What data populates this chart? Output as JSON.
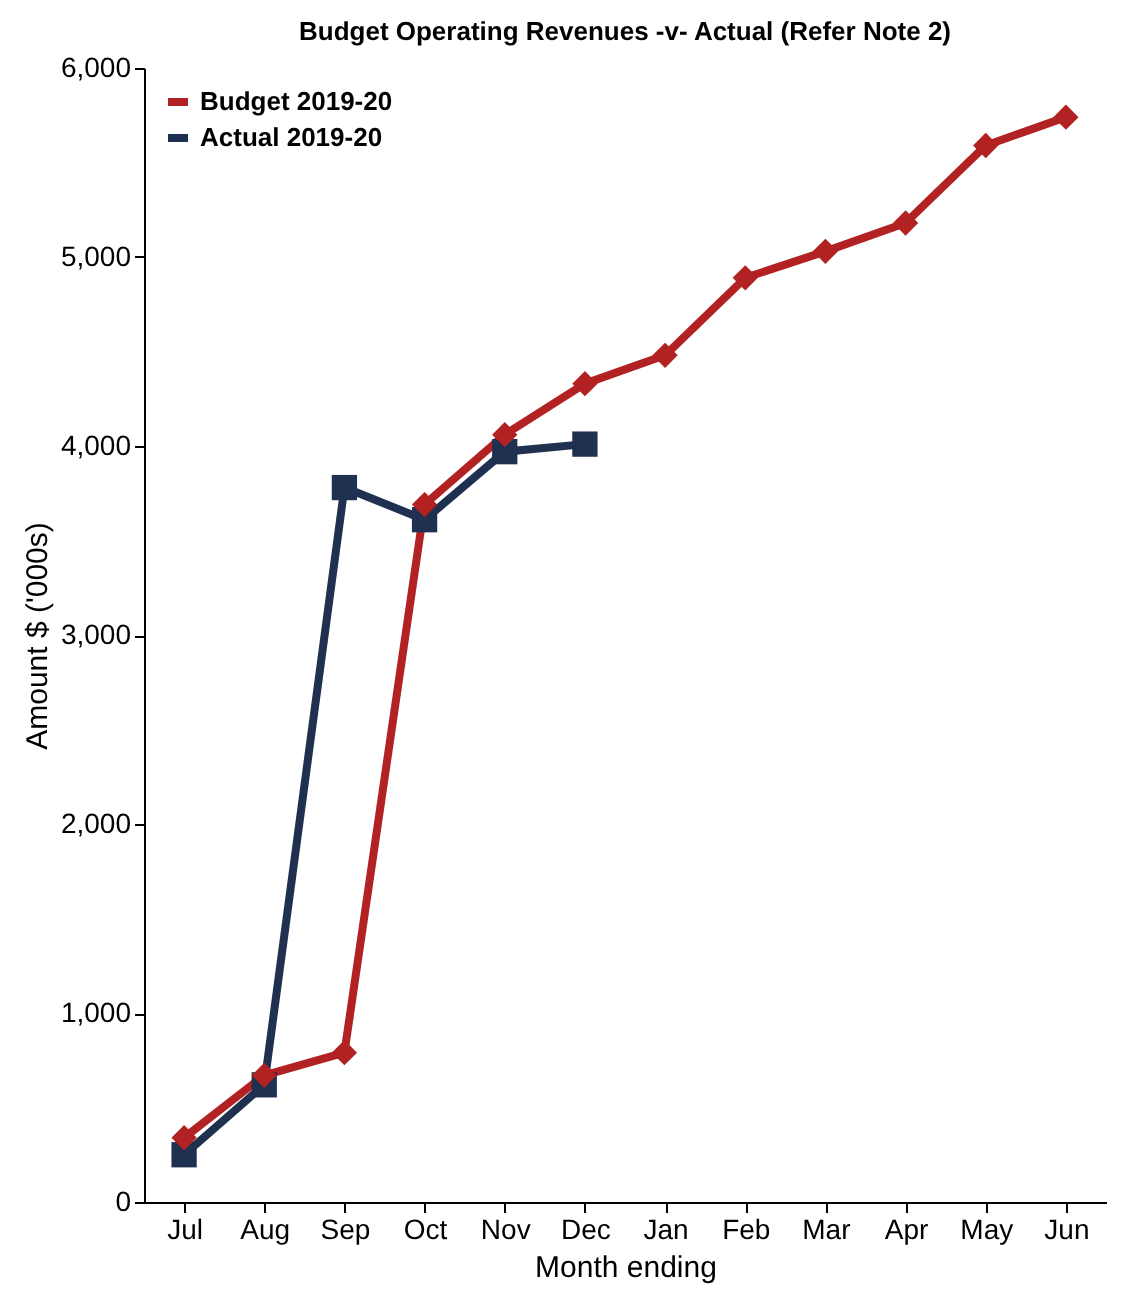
{
  "chart_data": {
    "type": "line",
    "title": "Budget Operating Revenues -v- Actual (Refer Note 2)",
    "xlabel": "Month ending",
    "ylabel": "Amount $ ('000s)",
    "categories": [
      "Jul",
      "Aug",
      "Sep",
      "Oct",
      "Nov",
      "Dec",
      "Jan",
      "Feb",
      "Mar",
      "Apr",
      "May",
      "Jun"
    ],
    "series": [
      {
        "name": "Budget 2019-20",
        "color": "#b22222",
        "marker": "diamond",
        "values": [
          340,
          670,
          790,
          3690,
          4060,
          4330,
          4480,
          4890,
          5030,
          5180,
          5590,
          5740
        ]
      },
      {
        "name": "Actual 2019-20",
        "color": "#1f3050",
        "marker": "square",
        "values": [
          250,
          620,
          3780,
          3610,
          3970,
          4010,
          null,
          null,
          null,
          null,
          null,
          null
        ]
      }
    ],
    "ylim": [
      0,
      6000
    ],
    "yticks": [
      0,
      {
        "value": 1000,
        "label": "1,000"
      },
      {
        "value": 2000,
        "label": "2,000"
      },
      {
        "value": 3000,
        "label": "3,000"
      },
      {
        "value": 4000,
        "label": "4,000"
      },
      {
        "value": 5000,
        "label": "5,000"
      },
      {
        "value": 6000,
        "label": "6,000"
      }
    ],
    "grid": false,
    "legend": "top left"
  }
}
